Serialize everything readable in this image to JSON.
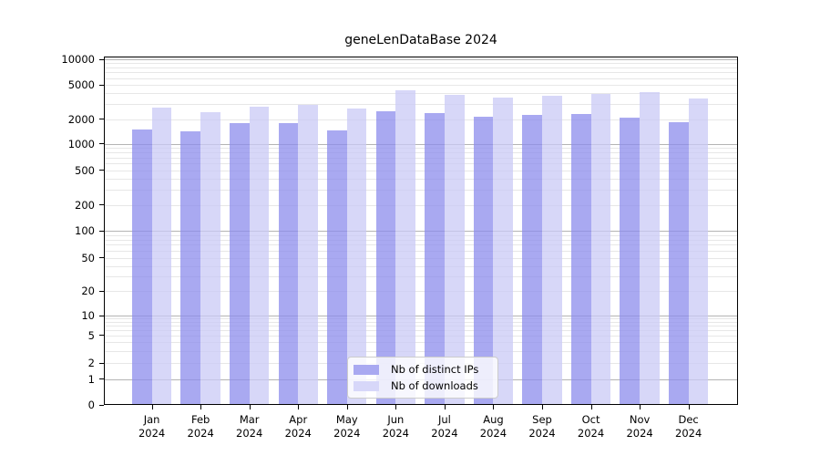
{
  "title": "geneLenDataBase 2024",
  "legend": {
    "items": [
      {
        "label": "Nb of distinct IPs",
        "series": "ips"
      },
      {
        "label": "Nb of downloads",
        "series": "downloads"
      }
    ]
  },
  "colors": {
    "ips_bar": "rgba(140,140,236,0.75)",
    "downloads_bar": "rgba(202,202,246,0.75)",
    "ips_solid": "#a9a9f1",
    "downloads_solid": "#d7d7f9",
    "major_grid": "#b4b4b4",
    "minor_grid": "#e7e7e7",
    "axis": "#000000"
  },
  "chart_data": {
    "type": "bar",
    "title": "geneLenDataBase 2024",
    "yscale": "symlog",
    "ylim": [
      0,
      11000
    ],
    "grid": true,
    "legend_position": "lower center",
    "categories": [
      "Jan 2024",
      "Feb 2024",
      "Mar 2024",
      "Apr 2024",
      "May 2024",
      "Jun 2024",
      "Jul 2024",
      "Aug 2024",
      "Sep 2024",
      "Oct 2024",
      "Nov 2024",
      "Dec 2024"
    ],
    "x_tick_lines": [
      {
        "month": "Jan",
        "year": "2024"
      },
      {
        "month": "Feb",
        "year": "2024"
      },
      {
        "month": "Mar",
        "year": "2024"
      },
      {
        "month": "Apr",
        "year": "2024"
      },
      {
        "month": "May",
        "year": "2024"
      },
      {
        "month": "Jun",
        "year": "2024"
      },
      {
        "month": "Jul",
        "year": "2024"
      },
      {
        "month": "Aug",
        "year": "2024"
      },
      {
        "month": "Sep",
        "year": "2024"
      },
      {
        "month": "Oct",
        "year": "2024"
      },
      {
        "month": "Nov",
        "year": "2024"
      },
      {
        "month": "Dec",
        "year": "2024"
      }
    ],
    "y_ticks": [
      0,
      1,
      2,
      5,
      10,
      20,
      50,
      100,
      200,
      500,
      1000,
      2000,
      5000,
      10000
    ],
    "series": [
      {
        "name": "Nb of distinct IPs",
        "key": "ips",
        "values": [
          1500,
          1430,
          1800,
          1820,
          1480,
          2480,
          2350,
          2160,
          2270,
          2310,
          2100,
          1860
        ]
      },
      {
        "name": "Nb of downloads",
        "key": "downloads",
        "values": [
          2730,
          2410,
          2800,
          2940,
          2670,
          4350,
          3800,
          3540,
          3740,
          3900,
          4090,
          3480
        ]
      }
    ]
  }
}
